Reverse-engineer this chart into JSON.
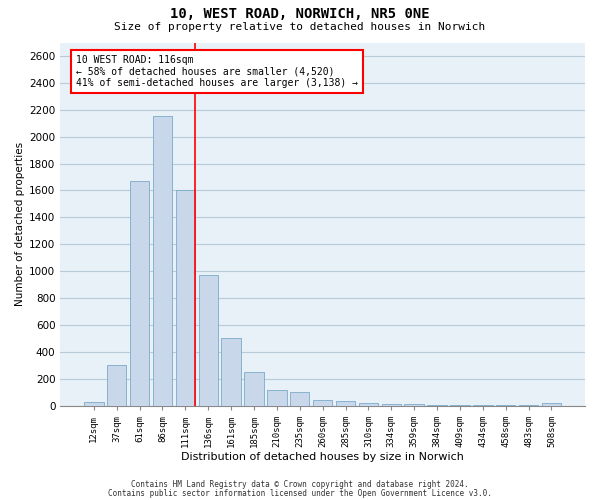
{
  "title1": "10, WEST ROAD, NORWICH, NR5 0NE",
  "title2": "Size of property relative to detached houses in Norwich",
  "xlabel": "Distribution of detached houses by size in Norwich",
  "ylabel": "Number of detached properties",
  "categories": [
    "12sqm",
    "37sqm",
    "61sqm",
    "86sqm",
    "111sqm",
    "136sqm",
    "161sqm",
    "185sqm",
    "210sqm",
    "235sqm",
    "260sqm",
    "285sqm",
    "310sqm",
    "334sqm",
    "359sqm",
    "384sqm",
    "409sqm",
    "434sqm",
    "458sqm",
    "483sqm",
    "508sqm"
  ],
  "values": [
    30,
    300,
    1670,
    2150,
    1600,
    970,
    500,
    250,
    120,
    100,
    42,
    35,
    22,
    12,
    10,
    8,
    6,
    8,
    4,
    6,
    22
  ],
  "bar_color": "#c8d8ea",
  "bar_edgecolor": "#7aaac8",
  "annotation_line1": "10 WEST ROAD: 116sqm",
  "annotation_line2": "← 58% of detached houses are smaller (4,520)",
  "annotation_line3": "41% of semi-detached houses are larger (3,138) →",
  "annotation_box_color": "white",
  "annotation_box_edgecolor": "red",
  "red_line_x": 4.42,
  "ylim": [
    0,
    2700
  ],
  "yticks": [
    0,
    200,
    400,
    600,
    800,
    1000,
    1200,
    1400,
    1600,
    1800,
    2000,
    2200,
    2400,
    2600
  ],
  "grid_color": "#b8ccd8",
  "background_color": "#e8f0f8",
  "footer1": "Contains HM Land Registry data © Crown copyright and database right 2024.",
  "footer2": "Contains public sector information licensed under the Open Government Licence v3.0."
}
